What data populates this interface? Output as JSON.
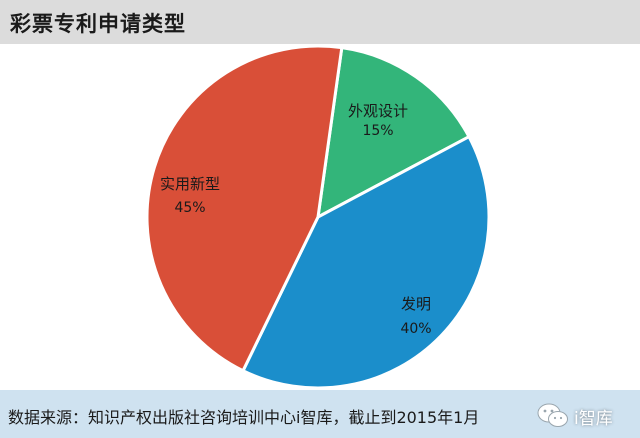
{
  "header": {
    "title": "彩票专利申请类型"
  },
  "footer": {
    "source": "数据来源：知识产权出版社咨询培训中心i智库，截止到2015年1月",
    "watermark": "i智库",
    "watermark_icon": "wechat-icon"
  },
  "chart_data": {
    "type": "pie",
    "slices": [
      {
        "label": "外观设计",
        "value": 15,
        "value_text": "15%",
        "color": "#33b57a"
      },
      {
        "label": "发明",
        "value": 40,
        "value_text": "40%",
        "color": "#1b8ecb"
      },
      {
        "label": "实用新型",
        "value": 45,
        "value_text": "45%",
        "color": "#d94f38"
      }
    ],
    "start": "top, slightly right of center",
    "direction": "clockwise"
  }
}
